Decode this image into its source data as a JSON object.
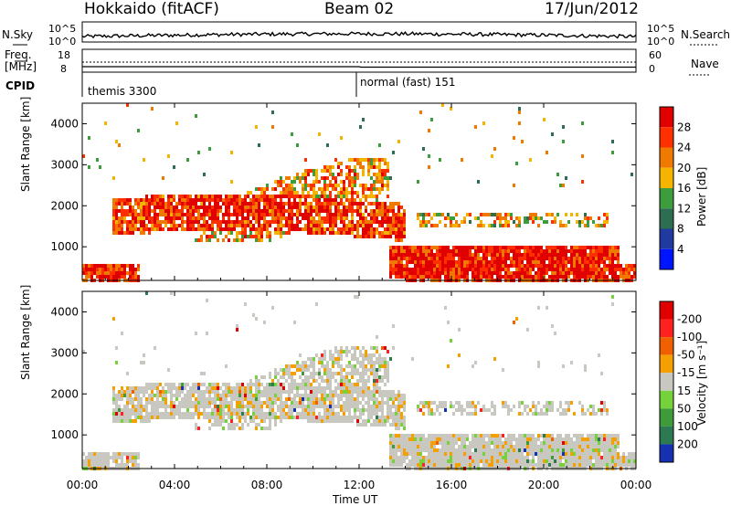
{
  "header": {
    "station": "Hokkaido (fitACF)",
    "beam": "Beam 02",
    "date": "17/Jun/2012"
  },
  "strip": {
    "left_nsky": "N.Sky",
    "left_nsky_top": "10^5",
    "left_nsky_bottom": "10^0",
    "right_nsearch": "N.Search",
    "right_top": "10^5",
    "right_bottom": "10^0",
    "freq_label": "Freq.",
    "freq_unit": "[MHz]",
    "freq_top": "18",
    "freq_bottom": "8",
    "nave_label": "Nave",
    "nave_top": "60",
    "nave_bottom": "0",
    "cpid_label": "CPID",
    "cpid_1": "themis 3300",
    "cpid_2": "normal (fast) 151"
  },
  "chart_data": [
    {
      "type": "heatmap",
      "name": "power",
      "ylabel": "Slant Range [km]",
      "xlabel": "Time UT",
      "x_ticks": [
        "00:00",
        "04:00",
        "08:00",
        "12:00",
        "16:00",
        "20:00",
        "00:00"
      ],
      "y_ticks": [
        1000,
        2000,
        3000,
        4000
      ],
      "ylim": [
        180,
        4500
      ],
      "colorbar_label": "Power [dB]",
      "colorbar_ticks": [
        4,
        8,
        12,
        16,
        20,
        24,
        28
      ],
      "colors": [
        "#0015ff",
        "#203aa0",
        "#2d6e52",
        "#3d9d3d",
        "#f5b400",
        "#f07a00",
        "#ff3000",
        "#e00000"
      ]
    },
    {
      "type": "heatmap",
      "name": "velocity",
      "ylabel": "Slant Range [km]",
      "xlabel": "Time UT",
      "x_ticks": [
        "00:00",
        "04:00",
        "08:00",
        "12:00",
        "16:00",
        "20:00",
        "00:00"
      ],
      "y_ticks": [
        1000,
        2000,
        3000,
        4000
      ],
      "ylim": [
        180,
        4500
      ],
      "colorbar_label": "Velocity [m s⁻¹]",
      "colorbar_ticks": [
        "200",
        "100",
        "50",
        "15",
        "-15",
        "-50",
        "-100",
        "-200"
      ],
      "colors": [
        "#1530b0",
        "#2d7a52",
        "#3f9a3a",
        "#76d23a",
        "#c8c8c0",
        "#f5a000",
        "#f06000",
        "#ff2020",
        "#e00000"
      ]
    }
  ]
}
